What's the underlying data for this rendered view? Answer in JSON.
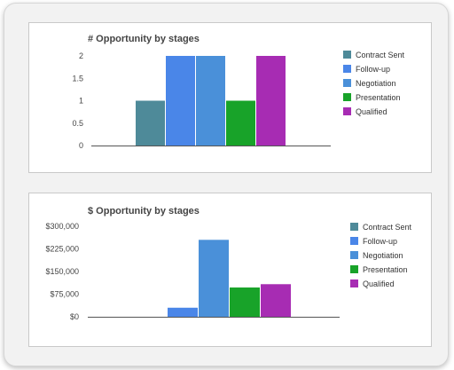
{
  "chart_data": [
    {
      "type": "bar",
      "title": "# Opportunity by stages",
      "xlabel": "",
      "ylabel": "",
      "ylim": [
        0,
        2
      ],
      "yticks": [
        "0",
        "0.5",
        "1",
        "1.5",
        "2"
      ],
      "grid": false,
      "legend_position": "right",
      "series": [
        {
          "name": "Contract Sent",
          "color": "#4e8a99",
          "value": 1
        },
        {
          "name": "Follow-up",
          "color": "#4a86e8",
          "value": 2
        },
        {
          "name": "Negotiation",
          "color": "#4a90d9",
          "value": 2
        },
        {
          "name": "Presentation",
          "color": "#18a329",
          "value": 1
        },
        {
          "name": "Qualified",
          "color": "#a72cb3",
          "value": 2
        }
      ]
    },
    {
      "type": "bar",
      "title": "$ Opportunity by stages",
      "xlabel": "",
      "ylabel": "",
      "ylim": [
        0,
        300000
      ],
      "yticks": [
        "$0",
        "$75,000",
        "$150,000",
        "$225,000",
        "$300,000"
      ],
      "grid": false,
      "legend_position": "right",
      "series": [
        {
          "name": "Contract Sent",
          "color": "#4e8a99",
          "value": 0
        },
        {
          "name": "Follow-up",
          "color": "#4a86e8",
          "value": 30000
        },
        {
          "name": "Negotiation",
          "color": "#4a90d9",
          "value": 255000
        },
        {
          "name": "Presentation",
          "color": "#18a329",
          "value": 97000
        },
        {
          "name": "Qualified",
          "color": "#a72cb3",
          "value": 108000
        }
      ]
    }
  ]
}
